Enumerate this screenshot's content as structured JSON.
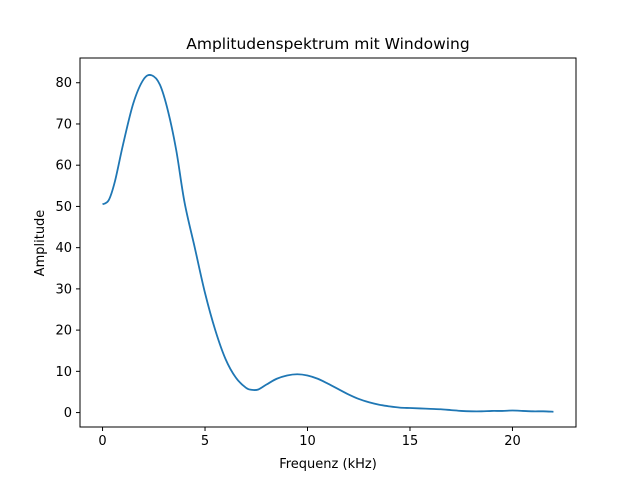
{
  "chart_data": {
    "type": "line",
    "title": "Amplitudenspektrum mit Windowing",
    "xlabel": "Frequenz (kHz)",
    "ylabel": "Amplitude",
    "xlim": [
      -1.1,
      23.1
    ],
    "ylim": [
      -3.5,
      86
    ],
    "xticks": [
      0,
      5,
      10,
      15,
      20
    ],
    "yticks": [
      0,
      10,
      20,
      30,
      40,
      50,
      60,
      70,
      80
    ],
    "grid": false,
    "legend": "none",
    "series": [
      {
        "color": "#1f77b4",
        "x": [
          0,
          0.3,
          0.6,
          1.0,
          1.5,
          2.0,
          2.4,
          2.8,
          3.2,
          3.6,
          4.0,
          4.5,
          5.0,
          5.5,
          6.0,
          6.5,
          7.0,
          7.3,
          7.6,
          8.0,
          8.5,
          9.0,
          9.5,
          10.0,
          10.5,
          11.0,
          11.5,
          12.0,
          12.5,
          13.0,
          13.5,
          14.0,
          14.5,
          15.0,
          15.5,
          16.0,
          16.5,
          17.0,
          17.5,
          18.0,
          18.5,
          19.0,
          19.5,
          20.0,
          20.5,
          21.0,
          21.5,
          22.0
        ],
        "y": [
          50.5,
          51.5,
          56.0,
          65.0,
          75.0,
          80.8,
          81.8,
          79.5,
          73.0,
          63.5,
          51.0,
          40.0,
          29.0,
          20.0,
          13.0,
          8.5,
          6.0,
          5.5,
          5.6,
          6.8,
          8.2,
          9.0,
          9.3,
          9.0,
          8.2,
          7.0,
          5.7,
          4.4,
          3.3,
          2.5,
          1.9,
          1.5,
          1.2,
          1.1,
          1.0,
          0.9,
          0.8,
          0.6,
          0.4,
          0.3,
          0.3,
          0.4,
          0.4,
          0.5,
          0.4,
          0.3,
          0.3,
          0.2
        ]
      }
    ]
  }
}
